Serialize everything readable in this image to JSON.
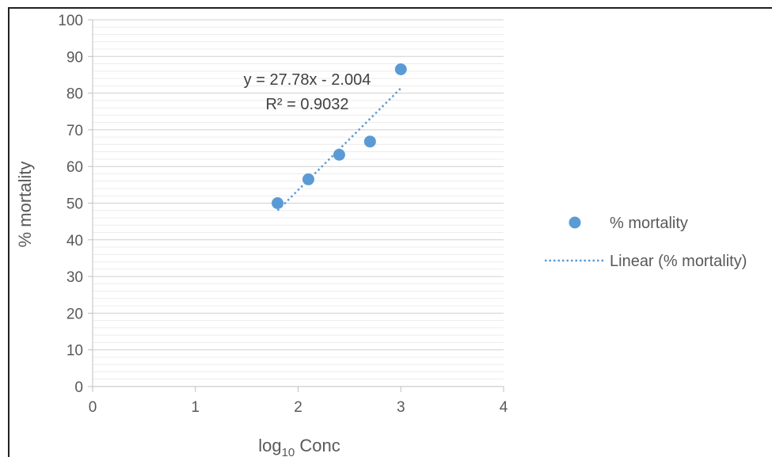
{
  "chart_data": {
    "type": "scatter",
    "xlabel_main": "log",
    "xlabel_sub": "10",
    "xlabel_rest": " Conc",
    "ylabel": "% mortality",
    "xlim": [
      0,
      4
    ],
    "ylim": [
      0,
      100
    ],
    "x_ticks": [
      0,
      1,
      2,
      3,
      4
    ],
    "y_ticks": [
      0,
      10,
      20,
      30,
      40,
      50,
      60,
      70,
      80,
      90,
      100
    ],
    "y_minor_step": 2,
    "grid": true,
    "series": [
      {
        "name": "% mortality",
        "color": "#5b9bd5",
        "x": [
          1.8,
          2.1,
          2.4,
          2.7,
          3.0
        ],
        "y": [
          50,
          56.5,
          63.2,
          66.8,
          86.5
        ]
      }
    ],
    "trendline": {
      "name": "Linear (% mortality)",
      "slope": 27.78,
      "intercept": -2.004,
      "x_range": [
        1.8,
        3.0
      ],
      "color": "#5b9bd5",
      "equation": "y = 27.78x - 2.004",
      "r2": "R² = 0.9032"
    },
    "legend": {
      "position": "right",
      "items": [
        "% mortality",
        "Linear (% mortality)"
      ]
    }
  }
}
